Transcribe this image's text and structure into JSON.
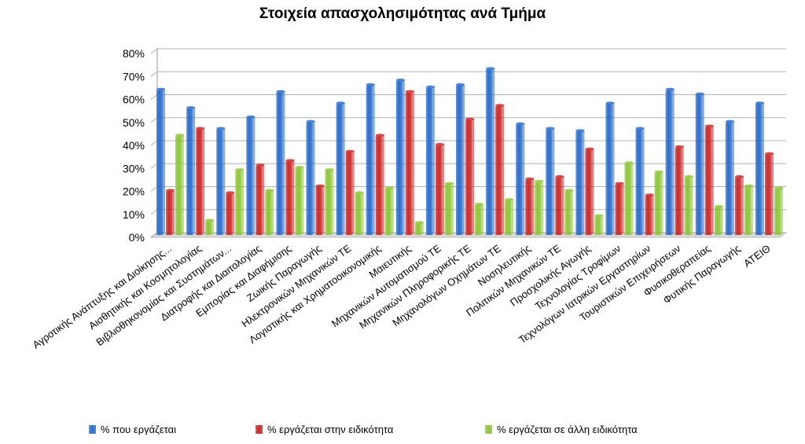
{
  "chart_data": {
    "type": "bar",
    "title": "Στοιχεία απασχολησιμότητας ανά Τμήμα",
    "xlabel": "",
    "ylabel": "",
    "ylim": [
      0,
      80
    ],
    "yticks": [
      "0%",
      "10%",
      "20%",
      "30%",
      "40%",
      "50%",
      "60%",
      "70%",
      "80%"
    ],
    "grid": true,
    "legend_position": "bottom",
    "categories": [
      "Αγροτικής Ανάπτυξης και Διοίκησης...",
      "Αισθητικής και Κοσμητολογίας",
      "Βιβλιοθηκονομίας και Συστημάτων...",
      "Διατροφής και Διαιτολογίας",
      "Εμπορίας και Διαφήμισης",
      "Ζωικής Παραγωγής",
      "Ηλεκτρονικών Μηχανικών ΤΕ",
      "Λογιστικής και Χρηματοοικονομικής",
      "Μαιευτικής",
      "Μηχανικών Αυτοματισμού ΤΕ",
      "Μηχανικών Πληροφορικής ΤΕ",
      "Μηχανολόγων Οχημάτων ΤΕ",
      "Νοσηλευτικής",
      "Πολιτικών Μηχανικών ΤΕ",
      "Προσχολικής Αγωγής",
      "Τεχνολογίας Τροφίμων",
      "Τεχνολόγων Ιατρικών Εργαστηρίων",
      "Τουριστικών Επιχειρήσεων",
      "Φυσικοθεραπείας",
      "Φυτικής Παραγωγής",
      "ΑΤΕΙΘ"
    ],
    "series": [
      {
        "name": "% που εργάζεται",
        "color": "#2e6fcc",
        "values": [
          63,
          55,
          46,
          51,
          62,
          49,
          57,
          65,
          67,
          64,
          65,
          72,
          48,
          46,
          45,
          57,
          46,
          63,
          61,
          49,
          57
        ]
      },
      {
        "name": "% εργάζεται στην ειδικότητα",
        "color": "#cc2b2b",
        "values": [
          19,
          46,
          18,
          30,
          32,
          21,
          36,
          43,
          62,
          39,
          50,
          56,
          24,
          25,
          37,
          22,
          17,
          38,
          47,
          25,
          35
        ]
      },
      {
        "name": "% εργάζεται σε άλλη ειδικότητα",
        "color": "#8fc63a",
        "values": [
          43,
          6,
          28,
          19,
          29,
          28,
          18,
          20,
          5,
          22,
          13,
          15,
          23,
          19,
          8,
          31,
          27,
          25,
          12,
          21,
          20
        ]
      }
    ]
  }
}
